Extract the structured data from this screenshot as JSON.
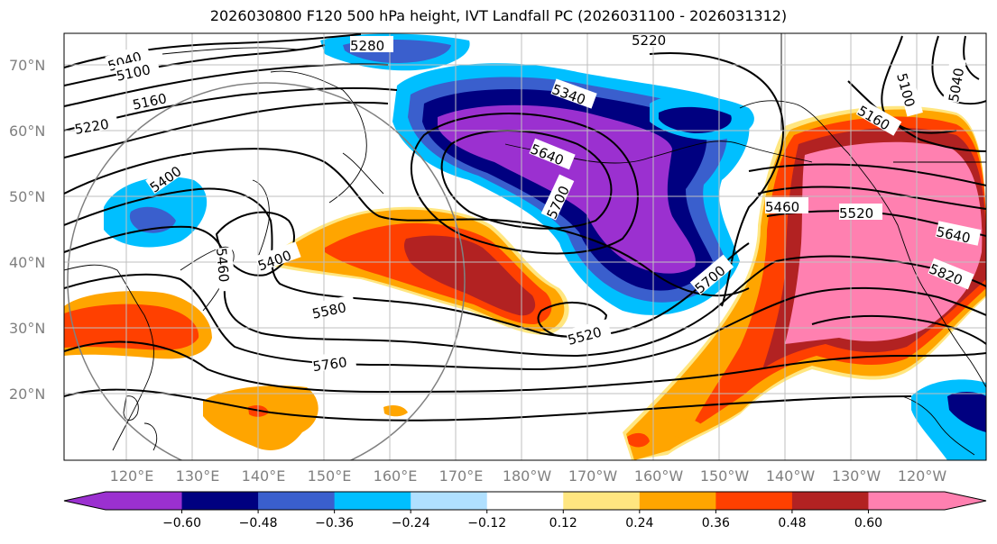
{
  "title": "2026030800 F120 500 hPa height, IVT Landfall PC (2026031100 - 2026031312)",
  "lat_labels": [
    "70°N",
    "60°N",
    "50°N",
    "40°N",
    "30°N",
    "20°N"
  ],
  "lon_labels": [
    "120°E",
    "130°E",
    "140°E",
    "150°E",
    "160°E",
    "170°E",
    "180°W",
    "170°W",
    "160°W",
    "150°W",
    "140°W",
    "130°W",
    "120°W"
  ],
  "contour_labels": [
    "5040",
    "5100",
    "5160",
    "5220",
    "5280",
    "5220",
    "5340",
    "5400",
    "5640",
    "5700",
    "5400",
    "5460",
    "5520",
    "5640",
    "5820",
    "5700",
    "5160",
    "5100",
    "5040",
    "5580",
    "5520",
    "5760",
    "5460"
  ],
  "colorbar": {
    "colors": [
      "#9b30d0",
      "#000080",
      "#3a5fcd",
      "#00bfff",
      "#b0e0ff",
      "#ffffff",
      "#ffe680",
      "#ffa500",
      "#ff4000",
      "#b22222",
      "#ff80b0"
    ],
    "tick_labels": [
      "−0.60",
      "−0.48",
      "−0.36",
      "−0.24",
      "−0.12",
      "0.12",
      "0.24",
      "0.36",
      "0.48",
      "0.60"
    ]
  },
  "legend_colors": {
    "neg_strong": "#9b30d0",
    "neg_navy": "#000080",
    "neg_blue": "#3a5fcd",
    "neg_sky": "#00bfff",
    "pos_gold": "#ffa500",
    "pos_orange": "#ff4000",
    "pos_red": "#b22222",
    "pos_pink": "#ff80b0"
  }
}
